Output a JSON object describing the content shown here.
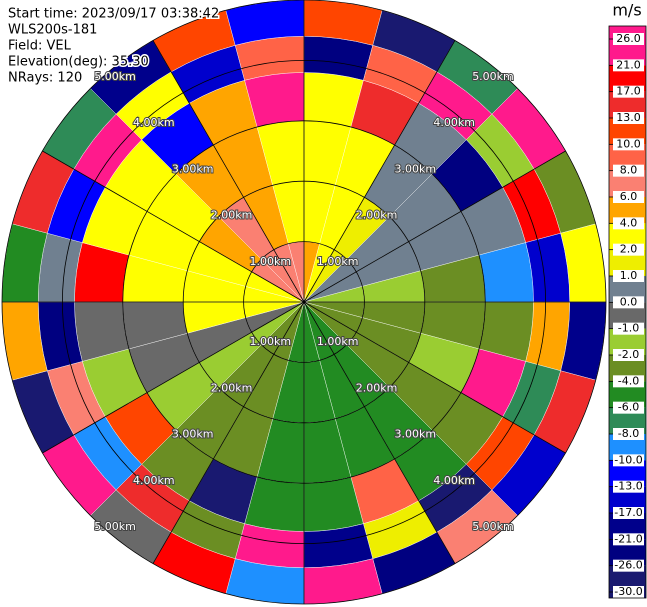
{
  "chart_data": {
    "type": "ppi",
    "header": [
      "Start time: 2023/09/17 03:38:42",
      "WLS200s-181",
      "Field: VEL",
      "Elevation(deg): 35.30",
      "NRays: 120"
    ],
    "colorbar": {
      "title": "m/s",
      "ticks": [
        {
          "value": 26,
          "label": "26.0"
        },
        {
          "value": 21,
          "label": "21.0"
        },
        {
          "value": 17,
          "label": "17.0"
        },
        {
          "value": 13,
          "label": "13.0"
        },
        {
          "value": 10,
          "label": "10.0"
        },
        {
          "value": 8,
          "label": "8.0"
        },
        {
          "value": 6,
          "label": "6.0"
        },
        {
          "value": 4,
          "label": "4.0"
        },
        {
          "value": 2,
          "label": "2.0"
        },
        {
          "value": 1,
          "label": "1.0"
        },
        {
          "value": 0,
          "label": "0.0"
        },
        {
          "value": -1,
          "label": "-1.0"
        },
        {
          "value": -2,
          "label": "-2.0"
        },
        {
          "value": -4,
          "label": "-4.0"
        },
        {
          "value": -6,
          "label": "-6.0"
        },
        {
          "value": -8,
          "label": "-8.0"
        },
        {
          "value": -10,
          "label": "-10.0"
        },
        {
          "value": -13,
          "label": "-13.0"
        },
        {
          "value": -17,
          "label": "-17.0"
        },
        {
          "value": -21,
          "label": "-21.0"
        },
        {
          "value": -26,
          "label": "-26.0"
        },
        {
          "value": -30,
          "label": "-30.0"
        }
      ],
      "colors": [
        "#ff1a8c",
        "#ff0000",
        "#ee2c2c",
        "#ff4500",
        "#ff6347",
        "#fa8072",
        "#ffa500",
        "#ffff00",
        "#eeee00",
        "#708090",
        "#696969",
        "#9acd32",
        "#6b8e23",
        "#228b22",
        "#2e8b57",
        "#1e90ff",
        "#0000ff",
        "#0000cd",
        "#00008b",
        "#000080",
        "#191970"
      ]
    },
    "rlim": [
      0,
      5
    ],
    "range_rings": [
      {
        "value": 1,
        "label": "1.00km"
      },
      {
        "value": 2,
        "label": "2.00km"
      },
      {
        "value": 3,
        "label": "3.00km"
      },
      {
        "value": 4,
        "label": "4.00km"
      },
      {
        "value": 5,
        "label": "5.00km"
      }
    ],
    "azimuth_edges": [
      0,
      15,
      30,
      45,
      60,
      75,
      90,
      105,
      120,
      135,
      150,
      165,
      180,
      195,
      210,
      225,
      240,
      255,
      270,
      285,
      300,
      315,
      330,
      345,
      360
    ],
    "rings": [
      {
        "range": [
          0,
          1
        ],
        "values": [
          5,
          3,
          2,
          0.5,
          0.5,
          -1.5,
          -3,
          -3,
          -3,
          -5,
          -5,
          -5,
          -5,
          -3,
          -3,
          -1.5,
          -0.5,
          3,
          3,
          3,
          7,
          7,
          7,
          7
        ]
      },
      {
        "range": [
          1,
          2
        ],
        "values": [
          3,
          3,
          2,
          0.5,
          0.5,
          -1.5,
          -3,
          -3,
          -3,
          -5,
          -5,
          -5,
          -5,
          -3,
          -3,
          -1.5,
          -0.5,
          3,
          3,
          3,
          5,
          7,
          5,
          3
        ]
      },
      {
        "range": [
          2,
          3
        ],
        "values": [
          3,
          3,
          0.5,
          0.5,
          0.5,
          -3,
          -3,
          -1.5,
          -3,
          -5,
          -5,
          -5,
          -5,
          -3,
          -3,
          -1.5,
          -0.5,
          -0.5,
          3,
          3,
          3,
          5,
          5,
          3
        ]
      },
      {
        "range": [
          3,
          3.8
        ],
        "values": [
          3,
          15,
          0.5,
          -23,
          0.5,
          -9,
          -3,
          23,
          -3,
          -5,
          9,
          -5,
          -5,
          -28,
          -3,
          11,
          -1.5,
          -0.5,
          19,
          3,
          3,
          -11,
          5,
          28
        ]
      },
      {
        "range": [
          3.8,
          4.4
        ],
        "values": [
          -23,
          9,
          28,
          -1.5,
          19,
          -15,
          5,
          -7,
          11,
          -28,
          1.5,
          -19,
          23,
          -3,
          15,
          -9,
          7,
          -23,
          0.5,
          -11,
          28,
          3,
          -15,
          9
        ]
      },
      {
        "range": [
          4.4,
          5
        ],
        "values": [
          11,
          -28,
          -7,
          23,
          -3,
          3,
          -19,
          15,
          -15,
          7,
          -23,
          28,
          -9,
          19,
          -0.5,
          23,
          -28,
          5,
          -5,
          15,
          -7,
          -19,
          11,
          -11
        ]
      }
    ]
  }
}
